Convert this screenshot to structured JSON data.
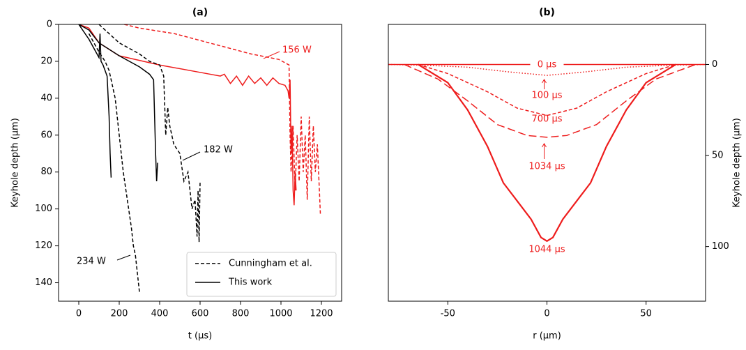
{
  "chart_data": [
    {
      "type": "line",
      "title": "(a)",
      "xlabel": "t (μs)",
      "ylabel": "Keyhole depth (μm)",
      "xlim": [
        -100,
        1300
      ],
      "xticks": [
        0,
        200,
        400,
        600,
        800,
        1000,
        1200
      ],
      "ylim": [
        150,
        0
      ],
      "yticks": [
        0,
        20,
        40,
        60,
        80,
        100,
        120,
        140
      ],
      "legend_position": "lower right",
      "legend": [
        {
          "name": "Cunningham et al.",
          "color": "#000000",
          "dash": "dashed"
        },
        {
          "name": "This work",
          "color": "#000000",
          "dash": "solid"
        }
      ],
      "annotations": [
        "156 W",
        "182 W",
        "234 W"
      ],
      "series": [
        {
          "color": "#ee1c1c",
          "dash": "dashed",
          "x": [
            225,
            300,
            473,
            645,
            852,
            990,
            1040,
            1045,
            1050,
            1060,
            1070,
            1080,
            1090,
            1100,
            1110,
            1120,
            1130,
            1140,
            1150,
            1160,
            1170,
            1180,
            1190,
            1195
          ],
          "values": [
            0,
            2,
            5,
            10,
            16,
            19,
            22,
            60,
            80,
            55,
            90,
            60,
            85,
            50,
            80,
            60,
            95,
            50,
            85,
            55,
            80,
            65,
            90,
            103
          ]
        },
        {
          "color": "#ee1c1c",
          "dash": "solid",
          "x": [
            0,
            50,
            100,
            200,
            400,
            600,
            700,
            720,
            750,
            780,
            810,
            840,
            870,
            900,
            930,
            960,
            990,
            1020,
            1035,
            1040,
            1045,
            1050,
            1055,
            1060,
            1065,
            1070,
            1075
          ],
          "values": [
            0,
            2,
            10,
            17,
            22,
            26,
            28,
            27,
            32,
            28,
            33,
            28,
            32,
            29,
            33,
            29,
            32,
            33,
            36,
            40,
            30,
            70,
            55,
            90,
            98,
            80,
            90
          ]
        },
        {
          "color": "#000000",
          "dash": "dashed",
          "x": [
            100,
            150,
            200,
            250,
            300,
            350,
            400,
            420,
            430,
            440,
            450,
            470,
            500,
            520,
            540,
            560,
            575,
            585,
            590,
            595,
            600
          ],
          "values": [
            0,
            5,
            10,
            13,
            16,
            20,
            22,
            28,
            60,
            45,
            55,
            65,
            70,
            85,
            80,
            100,
            95,
            115,
            90,
            118,
            85
          ]
        },
        {
          "color": "#000000",
          "dash": "solid",
          "x": [
            0,
            50,
            100,
            200,
            300,
            350,
            370,
            375,
            380,
            385,
            390
          ],
          "values": [
            0,
            3,
            10,
            17,
            23,
            27,
            30,
            50,
            70,
            85,
            75
          ]
        },
        {
          "color": "#000000",
          "dash": "dashed",
          "x": [
            50,
            100,
            130,
            150,
            180,
            200,
            220,
            240,
            260,
            270,
            280,
            290,
            300
          ],
          "values": [
            5,
            15,
            20,
            25,
            40,
            60,
            80,
            95,
            110,
            120,
            125,
            135,
            145
          ]
        },
        {
          "color": "#000000",
          "dash": "solid",
          "x": [
            0,
            50,
            100,
            105,
            110,
            120,
            140,
            150,
            155,
            160
          ],
          "values": [
            0,
            8,
            18,
            5,
            20,
            22,
            28,
            50,
            70,
            83
          ]
        }
      ]
    },
    {
      "type": "line",
      "title": "(b)",
      "xlabel": "r (μm)",
      "ylabel": "Keyhole depth (μm)",
      "yaxis_position": "right",
      "xlim": [
        -80,
        80
      ],
      "xticks": [
        -50,
        0,
        50
      ],
      "ylim": [
        130,
        -22
      ],
      "yticks": [
        0,
        50,
        100
      ],
      "series": [
        {
          "name": "0 μs",
          "color": "#ee1c1c",
          "dash": "solid",
          "x": [
            -80,
            80
          ],
          "values": [
            0,
            0
          ]
        },
        {
          "name": "100 μs",
          "color": "#ee1c1c",
          "dash": "dotted",
          "x": [
            -80,
            -60,
            -40,
            -20,
            0,
            20,
            40,
            60,
            80
          ],
          "values": [
            0,
            0.5,
            1.5,
            4,
            6,
            4,
            1.5,
            0.5,
            0
          ]
        },
        {
          "name": "700 μs",
          "color": "#ee1c1c",
          "dash": "dashed",
          "x": [
            -65,
            -50,
            -30,
            -15,
            0,
            15,
            30,
            50,
            65
          ],
          "values": [
            0,
            5,
            15,
            24,
            28,
            24,
            15,
            5,
            0
          ]
        },
        {
          "name": "1034 μs",
          "color": "#ee1c1c",
          "dash": "longdash",
          "x": [
            -72,
            -55,
            -40,
            -25,
            -10,
            0,
            10,
            25,
            40,
            55,
            75
          ],
          "values": [
            0,
            8,
            20,
            33,
            39,
            40,
            39,
            33,
            20,
            8,
            0
          ]
        },
        {
          "name": "1044 μs",
          "color": "#ee1c1c",
          "dash": "solid",
          "x": [
            -65,
            -50,
            -40,
            -30,
            -22,
            -15,
            -8,
            -3,
            0,
            3,
            8,
            15,
            22,
            30,
            40,
            50,
            65
          ],
          "values": [
            0,
            10,
            25,
            45,
            65,
            75,
            85,
            95,
            97,
            95,
            85,
            75,
            65,
            45,
            25,
            10,
            0
          ]
        }
      ]
    }
  ]
}
